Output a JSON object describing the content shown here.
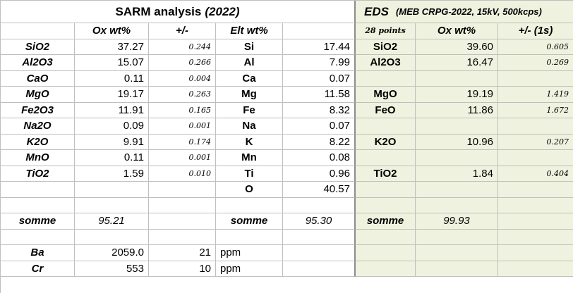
{
  "header": {
    "title": "SARM analysis",
    "title_year": "(2022)",
    "eds_title": "EDS",
    "eds_subtitle": "(MEB CRPG-2022, 15kV, 500kcps)"
  },
  "table": {
    "columns": [
      null,
      "Ox wt%",
      "+/-",
      "Elt wt%",
      null,
      "28 points",
      "Ox wt%",
      "+/- (1s)"
    ],
    "rows": [
      [
        "SiO2",
        "37.27",
        "0.244",
        "Si",
        "17.44",
        "SiO2",
        "39.60",
        "0.605"
      ],
      [
        "Al2O3",
        "15.07",
        "0.266",
        "Al",
        "7.99",
        "Al2O3",
        "16.47",
        "0.269"
      ],
      [
        "CaO",
        "0.11",
        "0.004",
        "Ca",
        "0.07",
        null,
        null,
        null
      ],
      [
        "MgO",
        "19.17",
        "0.263",
        "Mg",
        "11.58",
        "MgO",
        "19.19",
        "1.419"
      ],
      [
        "Fe2O3",
        "11.91",
        "0.165",
        "Fe",
        "8.32",
        "FeO",
        "11.86",
        "1.672"
      ],
      [
        "Na2O",
        "0.09",
        "0.001",
        "Na",
        "0.07",
        null,
        null,
        null
      ],
      [
        "K2O",
        "9.91",
        "0.174",
        "K",
        "8.22",
        "K2O",
        "10.96",
        "0.207"
      ],
      [
        "MnO",
        "0.11",
        "0.001",
        "Mn",
        "0.08",
        null,
        null,
        null
      ],
      [
        "TiO2",
        "1.59",
        "0.010",
        "Ti",
        "0.96",
        "TiO2",
        "1.84",
        "0.404"
      ],
      [
        null,
        null,
        null,
        "O",
        "40.57",
        null,
        null,
        null
      ],
      [
        null,
        null,
        null,
        null,
        null,
        null,
        null,
        null
      ],
      [
        "somme",
        "95.21",
        null,
        "somme",
        "95.30",
        "somme",
        "99.93",
        null
      ],
      [
        null,
        null,
        null,
        null,
        null,
        null,
        null,
        null
      ],
      [
        "Ba",
        "2059.0",
        "21",
        "ppm",
        null,
        null,
        null,
        null
      ],
      [
        "Cr",
        "553",
        "10",
        "ppm",
        null,
        null,
        null,
        null
      ]
    ]
  }
}
